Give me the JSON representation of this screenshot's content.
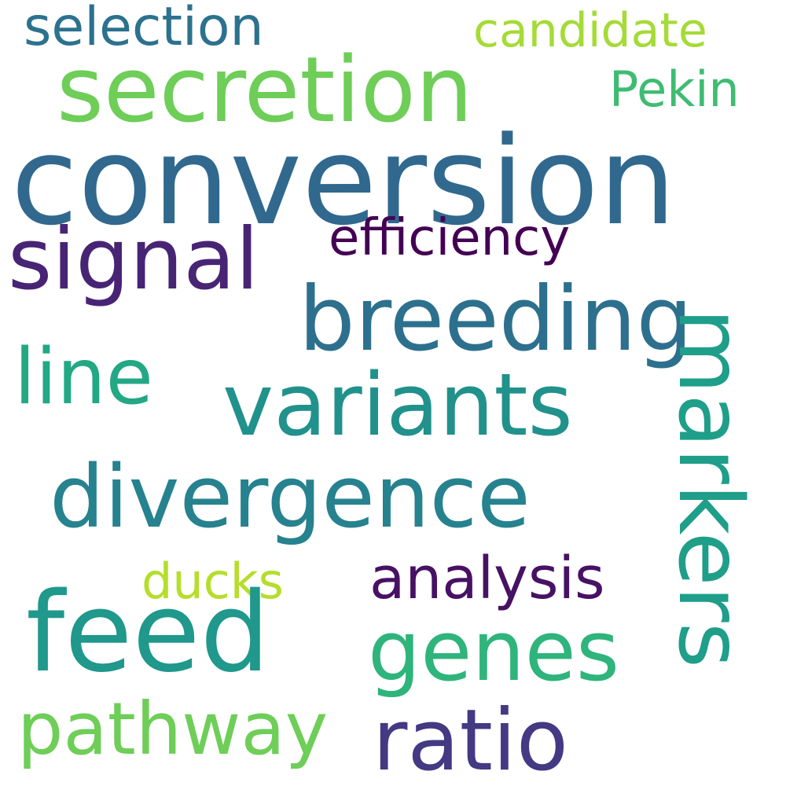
{
  "words": [
    {
      "id": "conversion",
      "text": "conversion",
      "color": "#31688e"
    },
    {
      "id": "secretion",
      "text": "secretion",
      "color": "#6ece58"
    },
    {
      "id": "selection",
      "text": "selection",
      "color": "#2c728e"
    },
    {
      "id": "candidate",
      "text": "candidate",
      "color": "#a5db36"
    },
    {
      "id": "pekin",
      "text": "Pekin",
      "color": "#3fbc73"
    },
    {
      "id": "efficiency",
      "text": "efficiency",
      "color": "#440154"
    },
    {
      "id": "signal",
      "text": "signal",
      "color": "#482475"
    },
    {
      "id": "breeding",
      "text": "breeding",
      "color": "#2d708e"
    },
    {
      "id": "line",
      "text": "line",
      "color": "#22a884"
    },
    {
      "id": "variants",
      "text": "variants",
      "color": "#21918c"
    },
    {
      "id": "divergence",
      "text": "divergence",
      "color": "#26828e"
    },
    {
      "id": "markers",
      "text": "markers",
      "color": "#1f9e89"
    },
    {
      "id": "analysis",
      "text": "analysis",
      "color": "#471164"
    },
    {
      "id": "ducks",
      "text": "ducks",
      "color": "#b5de2b"
    },
    {
      "id": "feed",
      "text": "feed",
      "color": "#20988c"
    },
    {
      "id": "genes",
      "text": "genes",
      "color": "#2fb47c"
    },
    {
      "id": "pathway",
      "text": "pathway",
      "color": "#6ece58"
    },
    {
      "id": "ratio",
      "text": "ratio",
      "color": "#443983"
    }
  ]
}
